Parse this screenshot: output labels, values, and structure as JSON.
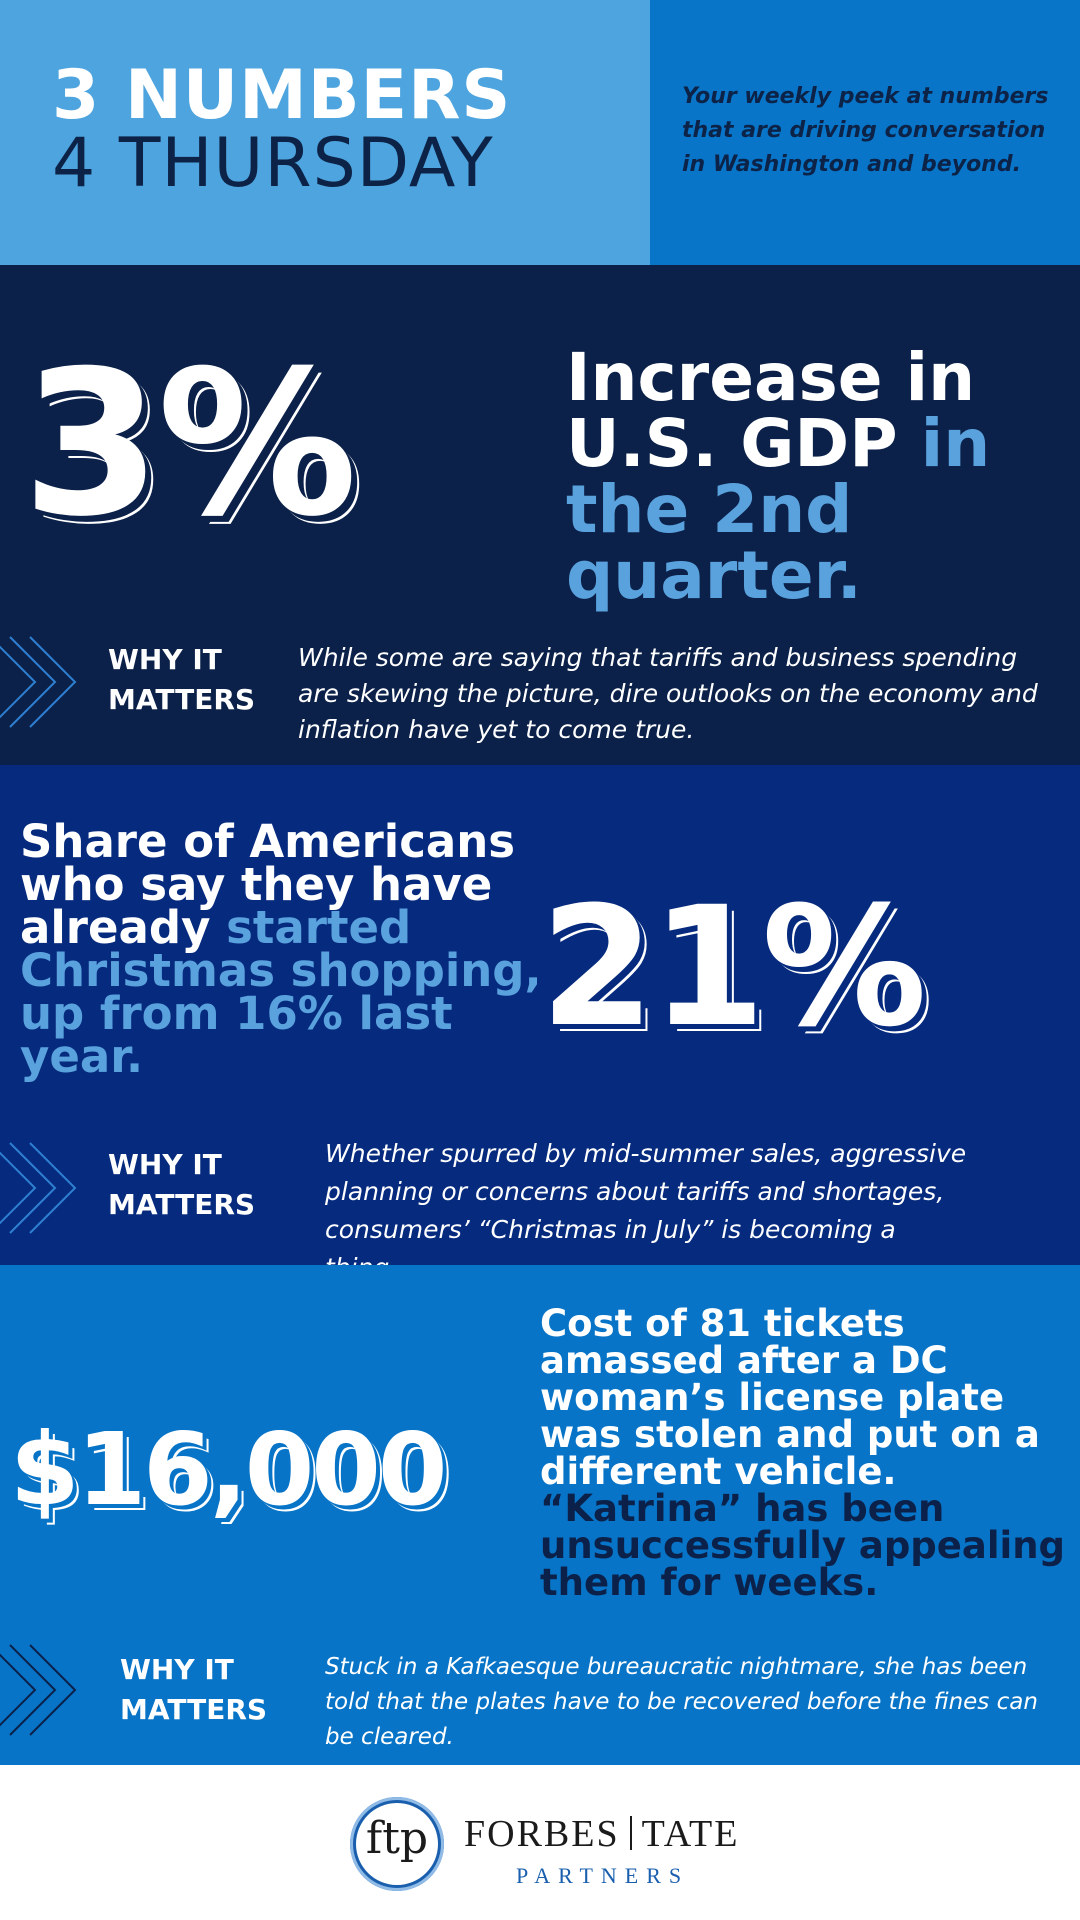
{
  "header": {
    "title_line1": "3 NUMBERS",
    "title_line2": "4 THURSDAY",
    "subtitle": "Your weekly peek at numbers that are driving conversation in Washington and beyond."
  },
  "items": [
    {
      "number": "3%",
      "headline_white": "Increase in U.S. GDP",
      "headline_accent": "in the 2nd quarter.",
      "why_label_1": "WHY IT",
      "why_label_2": "MATTERS",
      "why_text": "While some are saying that tariffs and business spending are skewing the picture, dire outlooks on the economy and inflation have yet to come true."
    },
    {
      "number": "21%",
      "headline_white": "Share of Americans who say they have already",
      "headline_accent": "started Christmas shopping, up from 16% last year.",
      "why_label_1": "WHY IT",
      "why_label_2": "MATTERS",
      "why_text": "Whether spurred by mid-summer sales, aggressive planning or concerns about tariffs and shortages, consumers’ “Christmas in July” is becoming a thing."
    },
    {
      "number": "$16,000",
      "headline_white": "Cost of 81 tickets amassed after a DC woman’s license plate was stolen and put on a different vehicle.",
      "headline_accent": "“Katrina” has been unsuccessfully appealing them for weeks.",
      "why_label_1": "WHY IT",
      "why_label_2": "MATTERS",
      "why_text": "Stuck in a Kafkaesque bureaucratic nightmare, she has been told that the plates have to be recovered before the fines can be cleared."
    }
  ],
  "footer": {
    "logo_mark": "ftp",
    "brand_left": "FORBES",
    "brand_right": "TATE",
    "brand_sub": "PARTNERS"
  },
  "colors": {
    "header_left": "#4ea4de",
    "header_right": "#0875c9",
    "section1": "#0b2149",
    "section2": "#062b7e",
    "section3": "#0874c7",
    "accent": "#5aa2de"
  }
}
